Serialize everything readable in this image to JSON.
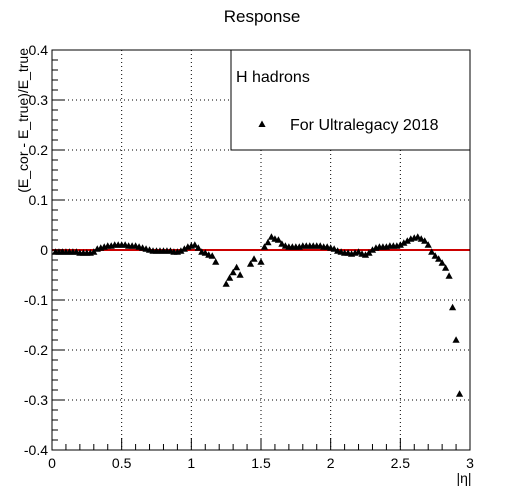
{
  "chart_data": {
    "type": "scatter",
    "title": "Response",
    "xlabel": "|η|",
    "ylabel": "(E_cor - E_true)/E_true",
    "xlim": [
      0,
      3
    ],
    "ylim": [
      -0.4,
      0.4
    ],
    "x_ticks": [
      "0",
      "0.5",
      "1",
      "1.5",
      "2",
      "2.5",
      "3"
    ],
    "x_tick_values": [
      0,
      0.5,
      1,
      1.5,
      2,
      2.5,
      3
    ],
    "y_ticks": [
      "-0.4",
      "-0.3",
      "-0.2",
      "-0.1",
      "0",
      "0.1",
      "0.2",
      "0.3",
      "0.4"
    ],
    "y_tick_values": [
      -0.4,
      -0.3,
      -0.2,
      -0.1,
      0,
      0.1,
      0.2,
      0.3,
      0.4
    ],
    "grid": true,
    "legend": {
      "header": "H hadrons",
      "placement": "top-right",
      "entries": [
        {
          "label": "For Ultralegacy 2018",
          "marker": "triangle"
        }
      ]
    },
    "reference_line": {
      "y": 0,
      "color": "#cc0000"
    },
    "colors": {
      "marker": "#000000",
      "reference_line": "#cc0000",
      "grid": "#000000"
    },
    "series": [
      {
        "name": "For Ultralegacy 2018",
        "marker": "triangle",
        "points": [
          [
            0.025,
            -0.004
          ],
          [
            0.05,
            -0.004
          ],
          [
            0.075,
            -0.004
          ],
          [
            0.1,
            -0.004
          ],
          [
            0.125,
            -0.004
          ],
          [
            0.15,
            -0.004
          ],
          [
            0.175,
            -0.004
          ],
          [
            0.2,
            -0.006
          ],
          [
            0.225,
            -0.006
          ],
          [
            0.25,
            -0.006
          ],
          [
            0.275,
            -0.006
          ],
          [
            0.3,
            -0.004
          ],
          [
            0.325,
            0.002
          ],
          [
            0.35,
            0.004
          ],
          [
            0.375,
            0.006
          ],
          [
            0.4,
            0.008
          ],
          [
            0.425,
            0.008
          ],
          [
            0.45,
            0.01
          ],
          [
            0.475,
            0.01
          ],
          [
            0.5,
            0.01
          ],
          [
            0.525,
            0.01
          ],
          [
            0.55,
            0.008
          ],
          [
            0.575,
            0.008
          ],
          [
            0.6,
            0.008
          ],
          [
            0.625,
            0.006
          ],
          [
            0.65,
            0.004
          ],
          [
            0.675,
            0.002
          ],
          [
            0.7,
            0.0
          ],
          [
            0.725,
            -0.002
          ],
          [
            0.75,
            -0.002
          ],
          [
            0.775,
            -0.002
          ],
          [
            0.8,
            -0.002
          ],
          [
            0.825,
            -0.002
          ],
          [
            0.85,
            -0.002
          ],
          [
            0.875,
            -0.004
          ],
          [
            0.9,
            -0.004
          ],
          [
            0.925,
            -0.002
          ],
          [
            0.95,
            0.002
          ],
          [
            0.975,
            0.006
          ],
          [
            1.0,
            0.008
          ],
          [
            1.025,
            0.01
          ],
          [
            1.05,
            0.004
          ],
          [
            1.075,
            -0.004
          ],
          [
            1.1,
            -0.006
          ],
          [
            1.125,
            -0.01
          ],
          [
            1.15,
            -0.012
          ],
          [
            1.175,
            -0.024
          ],
          [
            1.25,
            -0.068
          ],
          [
            1.275,
            -0.056
          ],
          [
            1.3,
            -0.045
          ],
          [
            1.325,
            -0.035
          ],
          [
            1.35,
            -0.05
          ],
          [
            1.425,
            -0.028
          ],
          [
            1.45,
            -0.018
          ],
          [
            1.5,
            -0.024
          ],
          [
            1.525,
            0.006
          ],
          [
            1.55,
            0.015
          ],
          [
            1.575,
            0.026
          ],
          [
            1.6,
            0.022
          ],
          [
            1.625,
            0.02
          ],
          [
            1.65,
            0.012
          ],
          [
            1.675,
            0.008
          ],
          [
            1.7,
            0.006
          ],
          [
            1.725,
            0.006
          ],
          [
            1.75,
            0.006
          ],
          [
            1.775,
            0.006
          ],
          [
            1.8,
            0.008
          ],
          [
            1.825,
            0.008
          ],
          [
            1.85,
            0.008
          ],
          [
            1.875,
            0.008
          ],
          [
            1.9,
            0.008
          ],
          [
            1.925,
            0.008
          ],
          [
            1.95,
            0.006
          ],
          [
            1.975,
            0.006
          ],
          [
            2.0,
            0.004
          ],
          [
            2.025,
            0.002
          ],
          [
            2.05,
            -0.002
          ],
          [
            2.075,
            -0.004
          ],
          [
            2.1,
            -0.006
          ],
          [
            2.125,
            -0.006
          ],
          [
            2.15,
            -0.008
          ],
          [
            2.175,
            -0.006
          ],
          [
            2.2,
            -0.004
          ],
          [
            2.225,
            -0.008
          ],
          [
            2.25,
            -0.01
          ],
          [
            2.275,
            -0.006
          ],
          [
            2.3,
            0.0
          ],
          [
            2.325,
            0.004
          ],
          [
            2.35,
            0.006
          ],
          [
            2.375,
            0.006
          ],
          [
            2.4,
            0.006
          ],
          [
            2.425,
            0.008
          ],
          [
            2.45,
            0.008
          ],
          [
            2.475,
            0.008
          ],
          [
            2.5,
            0.01
          ],
          [
            2.525,
            0.014
          ],
          [
            2.55,
            0.018
          ],
          [
            2.575,
            0.022
          ],
          [
            2.6,
            0.024
          ],
          [
            2.625,
            0.026
          ],
          [
            2.65,
            0.022
          ],
          [
            2.675,
            0.018
          ],
          [
            2.7,
            0.01
          ],
          [
            2.725,
            -0.004
          ],
          [
            2.75,
            -0.012
          ],
          [
            2.775,
            -0.018
          ],
          [
            2.8,
            -0.026
          ],
          [
            2.825,
            -0.036
          ],
          [
            2.85,
            -0.052
          ],
          [
            2.875,
            -0.115
          ],
          [
            2.9,
            -0.18
          ],
          [
            2.925,
            -0.288
          ]
        ]
      }
    ]
  }
}
